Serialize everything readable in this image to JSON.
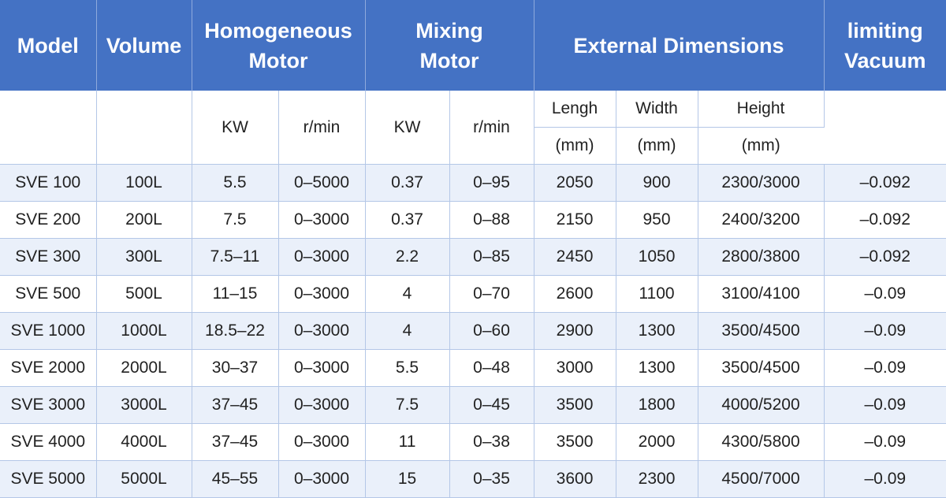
{
  "header": {
    "model": "Model",
    "volume": "Volume",
    "homo_line1": "Homogeneous",
    "homo_line2": "Motor",
    "mix_line1": "Mixing",
    "mix_line2": "Motor",
    "ext_dims": "External Dimensions",
    "vac_line1": "limiting",
    "vac_line2": "Vacuum"
  },
  "subheader": {
    "homo_kw": "KW",
    "homo_rpm": "r/min",
    "mix_kw": "KW",
    "mix_rpm": "r/min",
    "length": "Lengh",
    "width": "Width",
    "height": "Height",
    "length_unit": "(mm)",
    "width_unit": "(mm)",
    "height_unit": "(mm)"
  },
  "rows": [
    [
      "SVE 100",
      "100L",
      "5.5",
      "0–5000",
      "0.37",
      "0–95",
      "2050",
      "900",
      "2300/3000",
      "–0.092"
    ],
    [
      "SVE 200",
      "200L",
      "7.5",
      "0–3000",
      "0.37",
      "0–88",
      "2150",
      "950",
      "2400/3200",
      "–0.092"
    ],
    [
      "SVE 300",
      "300L",
      "7.5–11",
      "0–3000",
      "2.2",
      "0–85",
      "2450",
      "1050",
      "2800/3800",
      "–0.092"
    ],
    [
      "SVE 500",
      "500L",
      "11–15",
      "0–3000",
      "4",
      "0–70",
      "2600",
      "1100",
      "3100/4100",
      "–0.09"
    ],
    [
      "SVE 1000",
      "1000L",
      "18.5–22",
      "0–3000",
      "4",
      "0–60",
      "2900",
      "1300",
      "3500/4500",
      "–0.09"
    ],
    [
      "SVE 2000",
      "2000L",
      "30–37",
      "0–3000",
      "5.5",
      "0–48",
      "3000",
      "1300",
      "3500/4500",
      "–0.09"
    ],
    [
      "SVE 3000",
      "3000L",
      "37–45",
      "0–3000",
      "7.5",
      "0–45",
      "3500",
      "1800",
      "4000/5200",
      "–0.09"
    ],
    [
      "SVE 4000",
      "4000L",
      "37–45",
      "0–3000",
      "11",
      "0–38",
      "3500",
      "2000",
      "4300/5800",
      "–0.09"
    ],
    [
      "SVE 5000",
      "5000L",
      "45–55",
      "0–3000",
      "15",
      "0–35",
      "3600",
      "2300",
      "4500/7000",
      "–0.09"
    ]
  ]
}
